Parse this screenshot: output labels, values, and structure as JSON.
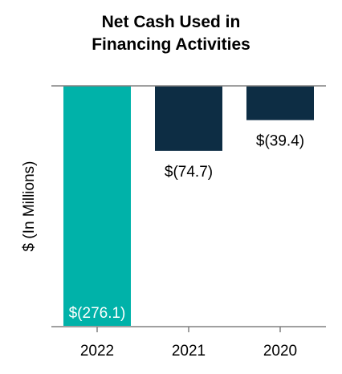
{
  "chart_data": {
    "type": "bar",
    "title_lines": [
      "Net Cash Used in",
      "Financing Activities"
    ],
    "ylabel": "$ (In Millions)",
    "xlabel": "",
    "categories": [
      "2022",
      "2021",
      "2020"
    ],
    "values": [
      -276.1,
      -74.7,
      -39.4
    ],
    "data_labels": [
      "$(276.1)",
      "$(74.7)",
      "$(39.4)"
    ],
    "ylim": [
      -276.1,
      0
    ],
    "grid": false,
    "legend": "none",
    "colors": [
      "#00b2a9",
      "#0d2d44",
      "#0d2d44"
    ],
    "label_colors": [
      "#ffffff",
      "#000000",
      "#000000"
    ],
    "axis_color": "#808080"
  }
}
